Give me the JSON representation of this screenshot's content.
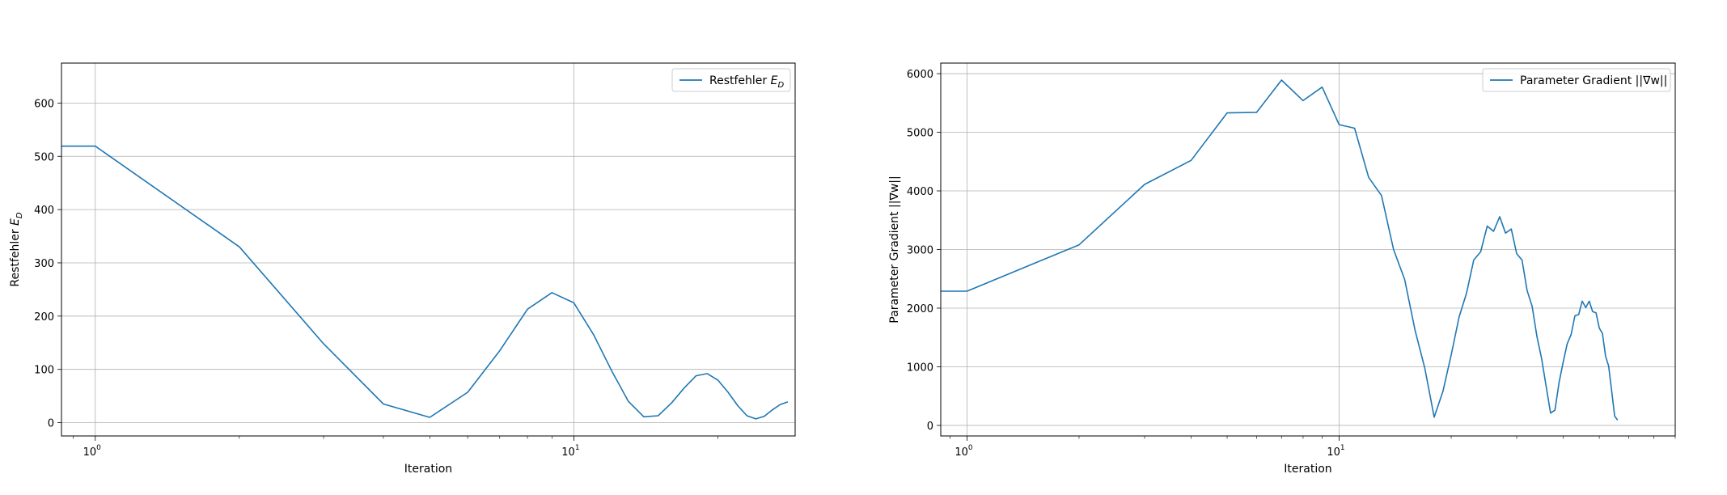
{
  "chart_data": [
    {
      "type": "line",
      "xscale": "log",
      "xlim": [
        0.85,
        29
      ],
      "ylim": [
        -25,
        675
      ],
      "xticks": [
        1,
        10
      ],
      "xtick_labels": [
        {
          "base": "10",
          "exp": "0"
        },
        {
          "base": "10",
          "exp": "1"
        }
      ],
      "yticks": [
        0,
        100,
        200,
        300,
        400,
        500,
        600
      ],
      "grid": true,
      "legend_position": "top-right",
      "xlabel": "Iteration",
      "ylabel": "Restfehler E_D",
      "color": "#1f77b4",
      "series": [
        {
          "name": "Restfehler E_D",
          "x": [
            0.85,
            1,
            2,
            3,
            4,
            5,
            6,
            7,
            8,
            9,
            10,
            11,
            12,
            13,
            14,
            15,
            16,
            17,
            18,
            19,
            20,
            21,
            22,
            23,
            24,
            25,
            26,
            27,
            28
          ],
          "y": [
            519,
            519,
            330,
            148,
            35,
            10,
            57,
            135,
            213,
            244,
            225,
            165,
            97,
            40,
            11,
            13,
            37,
            65,
            88,
            92,
            80,
            57,
            32,
            13,
            7,
            12,
            24,
            34,
            39
          ]
        }
      ]
    },
    {
      "type": "line",
      "xscale": "log",
      "xlim": [
        0.85,
        80
      ],
      "ylim": [
        -180,
        6180
      ],
      "xticks": [
        1,
        10
      ],
      "xtick_labels": [
        {
          "base": "10",
          "exp": "0"
        },
        {
          "base": "10",
          "exp": "1"
        }
      ],
      "yticks": [
        0,
        1000,
        2000,
        3000,
        4000,
        5000,
        6000
      ],
      "grid": true,
      "legend_position": "top-right",
      "xlabel": "Iteration",
      "ylabel": "Parameter Gradient ||∇w||",
      "color": "#1f77b4",
      "series": [
        {
          "name": "Parameter Gradient ||∇w||",
          "x": [
            0.85,
            1,
            2,
            3,
            4,
            5,
            6,
            7,
            8,
            9,
            10,
            11,
            12,
            13,
            14,
            15,
            16,
            17,
            18,
            19,
            20,
            21,
            22,
            23,
            24,
            25,
            26,
            27,
            28,
            29,
            30,
            31,
            32,
            33,
            34,
            35,
            36,
            37,
            38,
            39,
            40,
            41,
            42,
            43,
            44,
            45,
            46,
            47,
            48,
            49,
            50,
            51,
            52,
            53,
            54,
            55,
            56
          ],
          "y": [
            2290,
            2290,
            3080,
            4110,
            4520,
            5330,
            5340,
            5890,
            5540,
            5770,
            5130,
            5070,
            4230,
            3920,
            3000,
            2490,
            1620,
            970,
            140,
            580,
            1200,
            1850,
            2260,
            2820,
            2960,
            3400,
            3310,
            3560,
            3280,
            3350,
            2930,
            2820,
            2300,
            2030,
            1520,
            1140,
            660,
            210,
            260,
            740,
            1080,
            1390,
            1550,
            1870,
            1890,
            2120,
            2010,
            2120,
            1940,
            1920,
            1660,
            1570,
            1180,
            1010,
            580,
            160,
            90
          ]
        }
      ]
    }
  ]
}
